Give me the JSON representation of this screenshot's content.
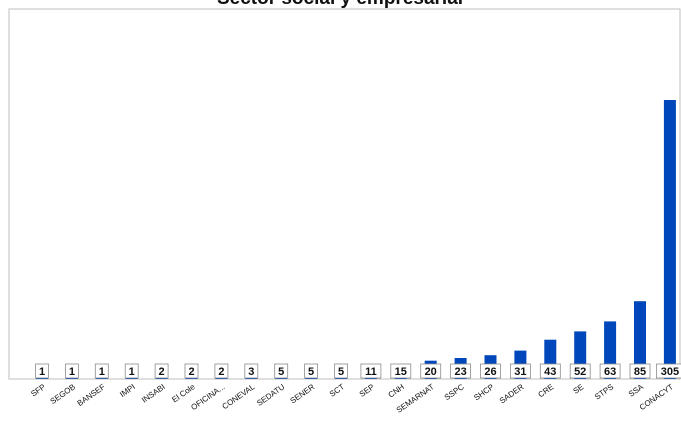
{
  "chart_data": {
    "type": "bar",
    "title": "Sector social y empresarial",
    "xlabel": "",
    "ylabel": "",
    "bar_color": "#0047bb",
    "ylim": [
      0,
      330
    ],
    "grid": false,
    "categories": [
      "SFP",
      "SEGOB",
      "BANSEF",
      "IMPI",
      "INSABI",
      "El Cole",
      "OFICINA...",
      "CONEVAL",
      "SEDATU",
      "SENER",
      "SCT",
      "SEP",
      "CNH",
      "SEMARNAT",
      "SSPC",
      "SHCP",
      "SADER",
      "CRE",
      "SE",
      "STPS",
      "SSA",
      "CONACYT"
    ],
    "values": [
      1,
      1,
      1,
      1,
      2,
      2,
      2,
      3,
      5,
      5,
      5,
      11,
      15,
      20,
      23,
      26,
      31,
      43,
      52,
      63,
      85,
      305
    ]
  }
}
